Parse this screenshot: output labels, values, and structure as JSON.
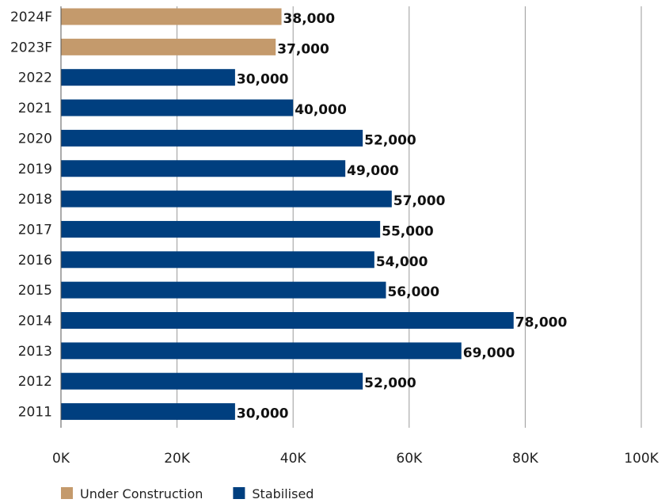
{
  "chart_data": {
    "type": "bar",
    "orientation": "horizontal",
    "categories": [
      "2024F",
      "2023F",
      "2022",
      "2021",
      "2020",
      "2019",
      "2018",
      "2017",
      "2016",
      "2015",
      "2014",
      "2013",
      "2012",
      "2011"
    ],
    "values": [
      38000,
      37000,
      30000,
      40000,
      52000,
      49000,
      57000,
      55000,
      54000,
      56000,
      78000,
      69000,
      52000,
      30000
    ],
    "value_labels": [
      "38,000",
      "37,000",
      "30,000",
      "40,000",
      "52,000",
      "49,000",
      "57,000",
      "55,000",
      "54,000",
      "56,000",
      "78,000",
      "69,000",
      "52,000",
      "30,000"
    ],
    "bar_series": [
      "Under Construction",
      "Under Construction",
      "Stabilised",
      "Stabilised",
      "Stabilised",
      "Stabilised",
      "Stabilised",
      "Stabilised",
      "Stabilised",
      "Stabilised",
      "Stabilised",
      "Stabilised",
      "Stabilised",
      "Stabilised"
    ],
    "series": [
      {
        "name": "Under Construction",
        "color": "#c49a6c"
      },
      {
        "name": "Stabilised",
        "color": "#003f7f"
      }
    ],
    "x_ticks": [
      0,
      20000,
      40000,
      60000,
      80000,
      100000
    ],
    "x_tick_labels": [
      "0K",
      "20K",
      "40K",
      "60K",
      "80K",
      "100K"
    ],
    "xlim": [
      0,
      100000
    ],
    "grid": "vertical",
    "legend_position": "bottom-left",
    "title": "",
    "xlabel": "",
    "ylabel": ""
  }
}
